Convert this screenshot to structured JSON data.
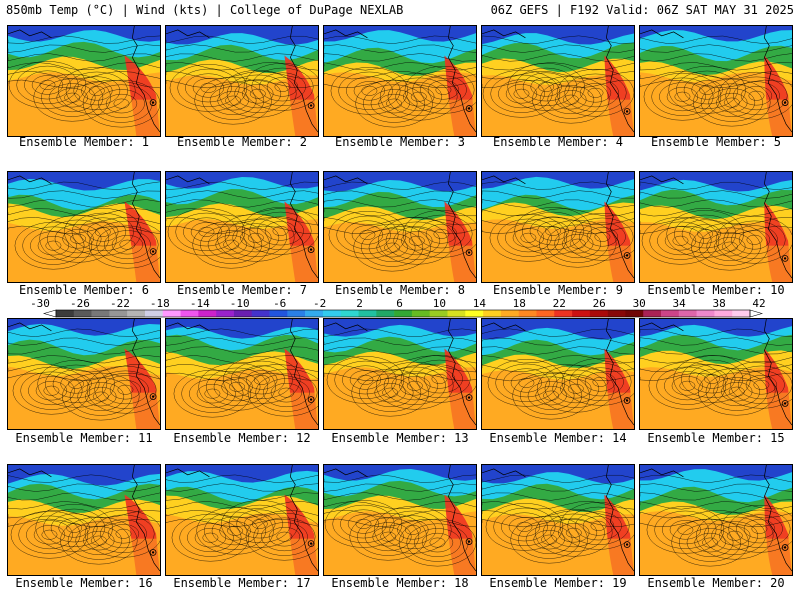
{
  "header": {
    "left": "850mb Temp (°C) | Wind (kts) | College of DuPage NEXLAB",
    "right": "06Z GEFS | F192 Valid: 06Z SAT MAY 31 2025"
  },
  "members": [
    {
      "label": "Ensemble Member: 1"
    },
    {
      "label": "Ensemble Member: 2"
    },
    {
      "label": "Ensemble Member: 3"
    },
    {
      "label": "Ensemble Member: 4"
    },
    {
      "label": "Ensemble Member: 5"
    },
    {
      "label": "Ensemble Member: 6"
    },
    {
      "label": "Ensemble Member: 7"
    },
    {
      "label": "Ensemble Member: 8"
    },
    {
      "label": "Ensemble Member: 9"
    },
    {
      "label": "Ensemble Member: 10"
    },
    {
      "label": "Ensemble Member: 11"
    },
    {
      "label": "Ensemble Member: 12"
    },
    {
      "label": "Ensemble Member: 13"
    },
    {
      "label": "Ensemble Member: 14"
    },
    {
      "label": "Ensemble Member: 15"
    },
    {
      "label": "Ensemble Member: 16"
    },
    {
      "label": "Ensemble Member: 17"
    },
    {
      "label": "Ensemble Member: 18"
    },
    {
      "label": "Ensemble Member: 19"
    },
    {
      "label": "Ensemble Member: 20"
    }
  ],
  "colorbar": {
    "ticks": [
      "-30",
      "-26",
      "-22",
      "-18",
      "-14",
      "-10",
      "-6",
      "-2",
      "2",
      "6",
      "10",
      "14",
      "18",
      "22",
      "26",
      "30",
      "34",
      "38",
      "42"
    ],
    "colors": [
      "#3c3c3c",
      "#5a5a5a",
      "#787878",
      "#969696",
      "#b4b4b4",
      "#cfcfe6",
      "#ff99ff",
      "#ee55ee",
      "#cc22cc",
      "#9922cc",
      "#6a1fb0",
      "#4433cc",
      "#2255dd",
      "#2a7fe6",
      "#33aaee",
      "#33ccee",
      "#2fd6d0",
      "#22c0a0",
      "#22a866",
      "#33a833",
      "#66bb22",
      "#99cc22",
      "#d6e020",
      "#ffff22",
      "#ffd020",
      "#ffaa22",
      "#ff8822",
      "#ff6622",
      "#ee3322",
      "#cc1111",
      "#aa0a0a",
      "#880808",
      "#700606",
      "#aa2255",
      "#cc4488",
      "#dd66aa",
      "#ee88cc",
      "#ffaadd",
      "#ffccee"
    ],
    "palette": {
      "cold": "#2244cc",
      "cyan": "#22ccee",
      "green": "#33aa44",
      "yellow": "#ffd020",
      "orange": "#ffaa22",
      "red": "#ee3322"
    }
  }
}
